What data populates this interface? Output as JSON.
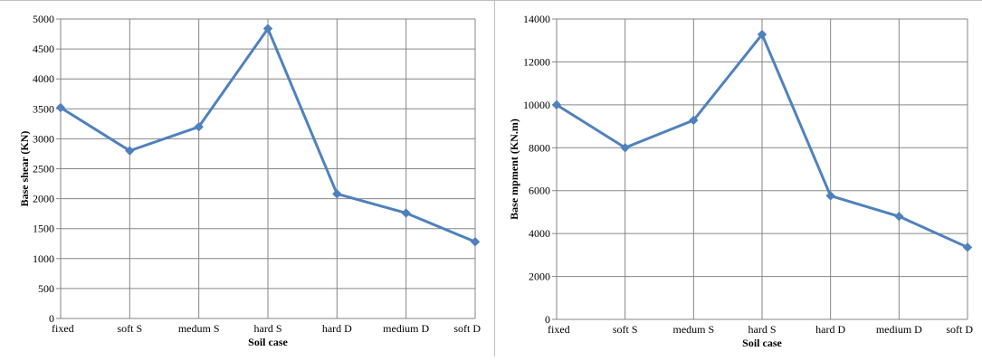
{
  "chart_data": [
    {
      "type": "line",
      "categories": [
        "fixed",
        "soft S",
        "medum S",
        "hard S",
        "hard D",
        "medium D",
        "soft D"
      ],
      "values": [
        3520,
        2800,
        3200,
        4840,
        2080,
        1760,
        1280
      ],
      "xlabel": "Soil case",
      "ylabel": "Base shear (KN)",
      "ylim": [
        0,
        5000
      ],
      "yticks": [
        0,
        500,
        1000,
        1500,
        2000,
        2500,
        3000,
        3500,
        4000,
        4500,
        5000
      ],
      "grid": true,
      "color": "#4f81bd"
    },
    {
      "type": "line",
      "categories": [
        "fixed",
        "soft S",
        "medum S",
        "hard S",
        "hard D",
        "medium D",
        "soft D"
      ],
      "values": [
        10000,
        8000,
        9280,
        13280,
        5760,
        4800,
        3360
      ],
      "xlabel": "Soil case",
      "ylabel": "Base mpment (KN.m)",
      "ylim": [
        0,
        14000
      ],
      "yticks": [
        0,
        2000,
        4000,
        6000,
        8000,
        10000,
        12000,
        14000
      ],
      "grid": true,
      "color": "#4f81bd"
    }
  ]
}
